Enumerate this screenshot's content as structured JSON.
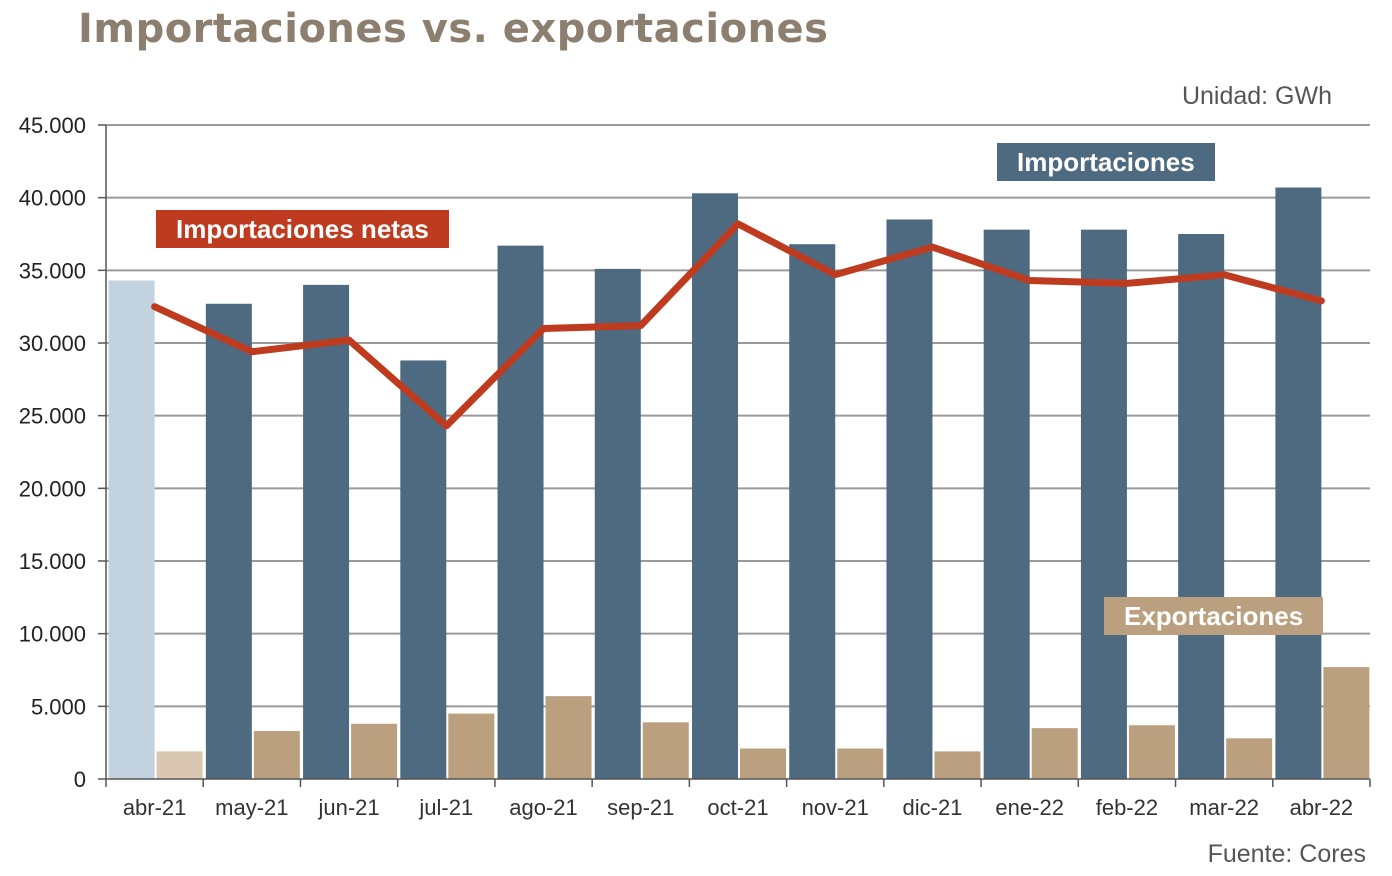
{
  "title": "Importaciones vs. exportaciones",
  "unit": "Unidad: GWh",
  "source": "Fuente: Cores",
  "colors": {
    "imports": "#4d6a80",
    "imports_previous_year": "#c2d3df",
    "exports": "#baa07f",
    "exports_previous_year": "#d9c7b1",
    "net_imports": "#bf3b1f",
    "grid": "#9a9a9a"
  },
  "chart_data": {
    "type": "bar",
    "title": "Importaciones vs. exportaciones",
    "ylabel": "",
    "xlabel": "",
    "ylim": [
      0,
      45000
    ],
    "yticks": [
      "0",
      "5.000",
      "10.000",
      "15.000",
      "20.000",
      "25.000",
      "30.000",
      "35.000",
      "40.000",
      "45.000"
    ],
    "grid": true,
    "categories": [
      "abr-21",
      "may-21",
      "jun-21",
      "jul-21",
      "ago-21",
      "sep-21",
      "oct-21",
      "nov-21",
      "dic-21",
      "ene-22",
      "feb-22",
      "mar-22",
      "abr-22"
    ],
    "series": [
      {
        "name": "Importaciones",
        "type": "bar",
        "values": [
          34300,
          32700,
          34000,
          28800,
          36700,
          35100,
          40300,
          36800,
          38500,
          37800,
          37800,
          37500,
          40700
        ]
      },
      {
        "name": "Exportaciones",
        "type": "bar",
        "values": [
          1900,
          3300,
          3800,
          4500,
          5700,
          3900,
          2100,
          2100,
          1900,
          3500,
          3700,
          2800,
          7700
        ]
      },
      {
        "name": "Importaciones netas",
        "type": "line",
        "values": [
          32500,
          29400,
          30200,
          24300,
          31000,
          31200,
          38200,
          34700,
          36600,
          34300,
          34100,
          34700,
          32900
        ]
      }
    ]
  }
}
